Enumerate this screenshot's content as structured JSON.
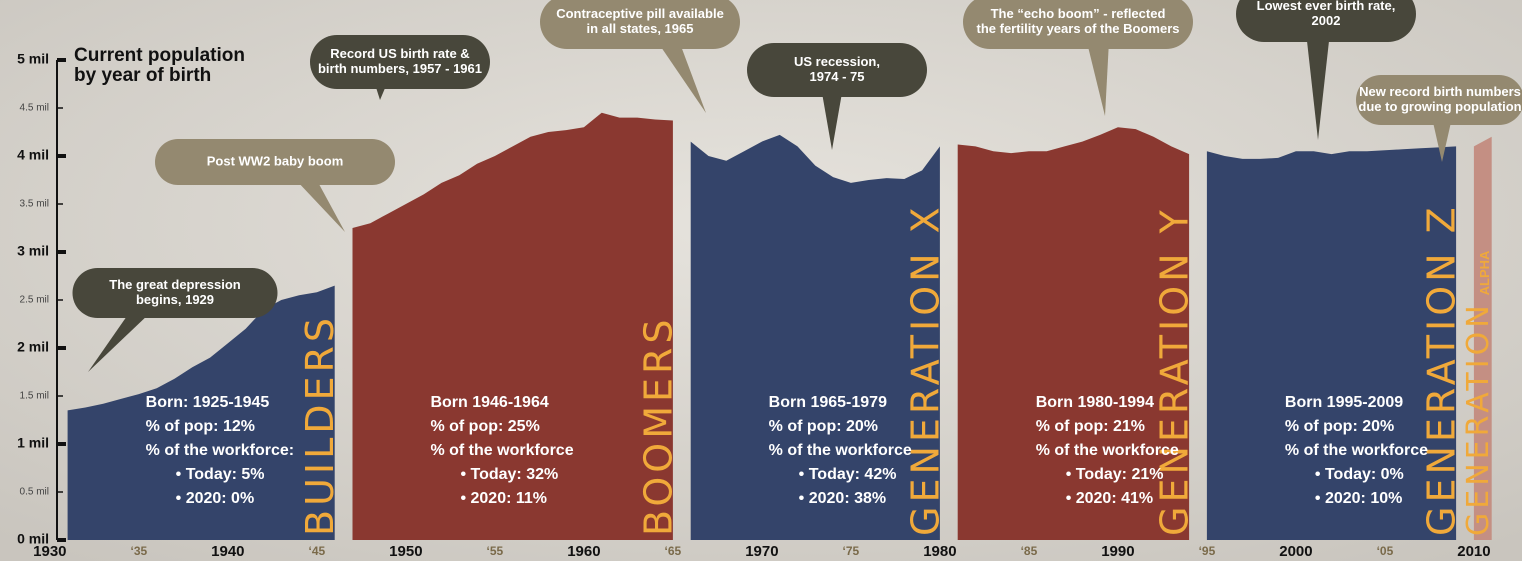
{
  "chart_data": {
    "type": "area",
    "title_lines": [
      "Current population",
      "by year of birth"
    ],
    "xlim": [
      1927.2,
      2012.7
    ],
    "ylim": [
      0,
      5
    ],
    "yticks": [
      {
        "value": 0,
        "label": "0 mil"
      },
      {
        "value": 0.5,
        "label": "0.5 mil"
      },
      {
        "value": 1,
        "label": "1 mil"
      },
      {
        "value": 1.5,
        "label": "1.5 mil"
      },
      {
        "value": 2,
        "label": "2  mil"
      },
      {
        "value": 2.5,
        "label": "2.5 mil"
      },
      {
        "value": 3,
        "label": "3 mil"
      },
      {
        "value": 3.5,
        "label": "3.5 mil"
      },
      {
        "value": 4,
        "label": "4 mil"
      },
      {
        "value": 4.5,
        "label": "4.5 mil"
      },
      {
        "value": 5,
        "label": "5 mil"
      }
    ],
    "xticks": [
      1930,
      {
        "value": 1935,
        "label": "‘35"
      },
      1940,
      {
        "value": 1945,
        "label": "‘45"
      },
      1950,
      {
        "value": 1955,
        "label": "‘55"
      },
      1960,
      {
        "value": 1965,
        "label": "‘65"
      },
      1970,
      {
        "value": 1975,
        "label": "‘75"
      },
      1980,
      {
        "value": 1985,
        "label": "‘85"
      },
      1990,
      {
        "value": 1995,
        "label": "‘95"
      },
      2000,
      {
        "value": 2005,
        "label": "‘05"
      },
      2010
    ],
    "series": [
      {
        "name": "BUILDERS",
        "color": "#34446a",
        "x": [
          1931,
          1932,
          1933,
          1934,
          1935,
          1936,
          1937,
          1938,
          1939,
          1940,
          1941,
          1942,
          1943,
          1944,
          1945,
          1946
        ],
        "values": [
          1.35,
          1.38,
          1.42,
          1.47,
          1.52,
          1.58,
          1.68,
          1.8,
          1.9,
          2.05,
          2.2,
          2.4,
          2.5,
          2.55,
          2.58,
          2.65
        ],
        "lines": [
          "Born: 1925-1945",
          "% of pop: 12%",
          "% of the workforce:",
          "• Today: 5%",
          "• 2020: 0%"
        ]
      },
      {
        "name": "BOOMERS",
        "color": "#8a3830",
        "x": [
          1947,
          1948,
          1949,
          1950,
          1951,
          1952,
          1953,
          1954,
          1955,
          1956,
          1957,
          1958,
          1959,
          1960,
          1961,
          1962,
          1963,
          1964,
          1965
        ],
        "values": [
          3.25,
          3.3,
          3.4,
          3.5,
          3.6,
          3.72,
          3.8,
          3.92,
          4.0,
          4.1,
          4.2,
          4.25,
          4.27,
          4.3,
          4.45,
          4.4,
          4.4,
          4.38,
          4.37
        ],
        "lines": [
          "Born 1946-1964",
          "% of pop: 25%",
          "% of the workforce",
          "• Today: 32%",
          "• 2020: 11%"
        ]
      },
      {
        "name": "GENERATION X",
        "color": "#34446a",
        "x": [
          1966,
          1967,
          1968,
          1969,
          1970,
          1971,
          1972,
          1973,
          1974,
          1975,
          1976,
          1977,
          1978,
          1979,
          1980
        ],
        "values": [
          4.15,
          4.0,
          3.95,
          4.05,
          4.15,
          4.22,
          4.1,
          3.9,
          3.78,
          3.72,
          3.75,
          3.77,
          3.76,
          3.85,
          4.1
        ],
        "lines": [
          "Born 1965-1979",
          "% of pop: 20%",
          "% of the workforce",
          "• Today: 42%",
          "• 2020: 38%"
        ]
      },
      {
        "name": "GENERATION Y",
        "color": "#8a3830",
        "x": [
          1981,
          1982,
          1983,
          1984,
          1985,
          1986,
          1987,
          1988,
          1989,
          1990,
          1991,
          1992,
          1993,
          1994
        ],
        "values": [
          4.12,
          4.1,
          4.05,
          4.03,
          4.05,
          4.05,
          4.1,
          4.15,
          4.22,
          4.3,
          4.28,
          4.2,
          4.1,
          4.02
        ],
        "lines": [
          "Born 1980-1994",
          "% of pop: 21%",
          "% of the workforce",
          "• Today: 21%",
          "• 2020: 41%"
        ]
      },
      {
        "name": "GENERATION Z",
        "color": "#34446a",
        "x": [
          1995,
          1996,
          1997,
          1998,
          1999,
          2000,
          2001,
          2002,
          2003,
          2004,
          2005,
          2006,
          2007,
          2008,
          2009
        ],
        "values": [
          4.05,
          4.0,
          3.97,
          3.97,
          3.98,
          4.05,
          4.05,
          4.02,
          4.05,
          4.05,
          4.06,
          4.07,
          4.08,
          4.09,
          4.1
        ],
        "lines": [
          "Born 1995-2009",
          "% of pop: 20%",
          "% of the workforce",
          "• Today: 0%",
          "• 2020: 10%"
        ]
      },
      {
        "name": "GENERATION",
        "name_small": "ALPHA",
        "color": "#c48f83",
        "x": [
          2010,
          2011
        ],
        "values": [
          4.1,
          4.2
        ],
        "lines": []
      }
    ],
    "annotations": [
      {
        "lines": [
          "The great depression",
          "begins, 1929"
        ],
        "style": "dark"
      },
      {
        "lines": [
          "Post WW2 baby boom"
        ],
        "style": "tan"
      },
      {
        "lines": [
          "Record US birth rate &",
          "birth numbers, 1957 - 1961"
        ],
        "style": "dark"
      },
      {
        "lines": [
          "Contraceptive pill available",
          "in all states, 1965"
        ],
        "style": "tan"
      },
      {
        "lines": [
          "US recession,",
          "1974 - 75"
        ],
        "style": "dark"
      },
      {
        "lines": [
          "The “echo boom” - reflected",
          "the fertility years of the Boomers"
        ],
        "style": "tan"
      },
      {
        "lines": [
          "Lowest ever birth rate,",
          "2002"
        ],
        "style": "dark"
      },
      {
        "lines": [
          "New record birth numbers",
          "due to growing population"
        ],
        "style": "tan"
      }
    ]
  }
}
